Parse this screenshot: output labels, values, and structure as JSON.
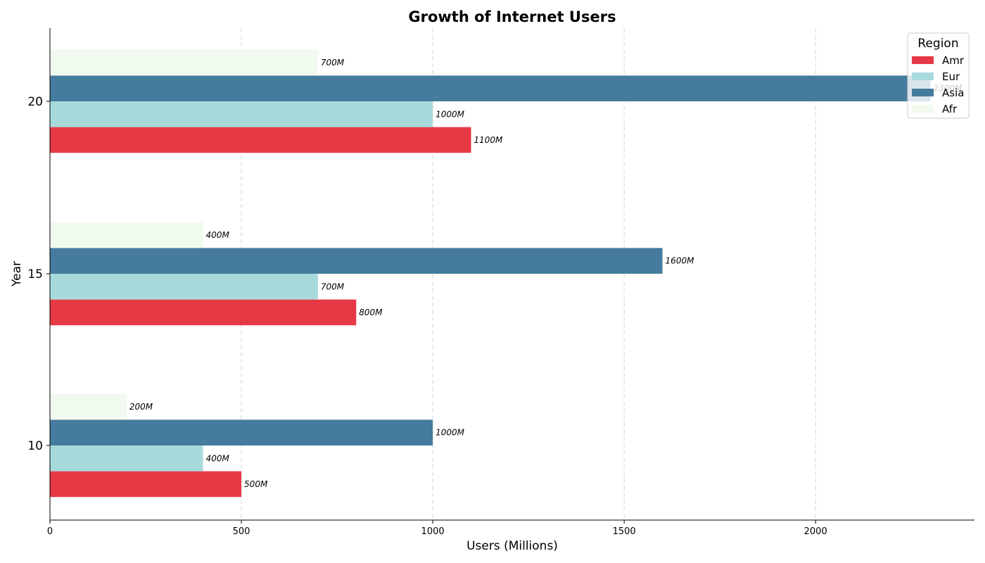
{
  "chart_data": {
    "type": "bar",
    "orientation": "horizontal",
    "title": "Growth of Internet Users",
    "xlabel": "Users (Millions)",
    "ylabel": "Year",
    "categories": [
      "10",
      "15",
      "20"
    ],
    "series": [
      {
        "name": "Amr",
        "color": "#e63946",
        "values": [
          500,
          800,
          1100
        ],
        "labels": [
          "500M",
          "800M",
          "1100M"
        ]
      },
      {
        "name": "Eur",
        "color": "#a8dadc",
        "values": [
          400,
          700,
          1000
        ],
        "labels": [
          "400M",
          "700M",
          "1000M"
        ]
      },
      {
        "name": "Asia",
        "color": "#457b9d",
        "values": [
          1000,
          1600,
          2300
        ],
        "labels": [
          "1000M",
          "1600M",
          "2300M"
        ]
      },
      {
        "name": "Afr",
        "color": "#f1faee",
        "values": [
          200,
          400,
          700
        ],
        "labels": [
          "200M",
          "400M",
          "700M"
        ]
      }
    ],
    "xlim": [
      0,
      2415
    ],
    "xticks": [
      0,
      500,
      1000,
      1500,
      2000
    ],
    "xtick_labels": [
      "0",
      "500",
      "1000",
      "1500",
      "2000"
    ],
    "grid": "x-dashed",
    "legend": {
      "title": "Region",
      "placement": "top-right"
    }
  }
}
